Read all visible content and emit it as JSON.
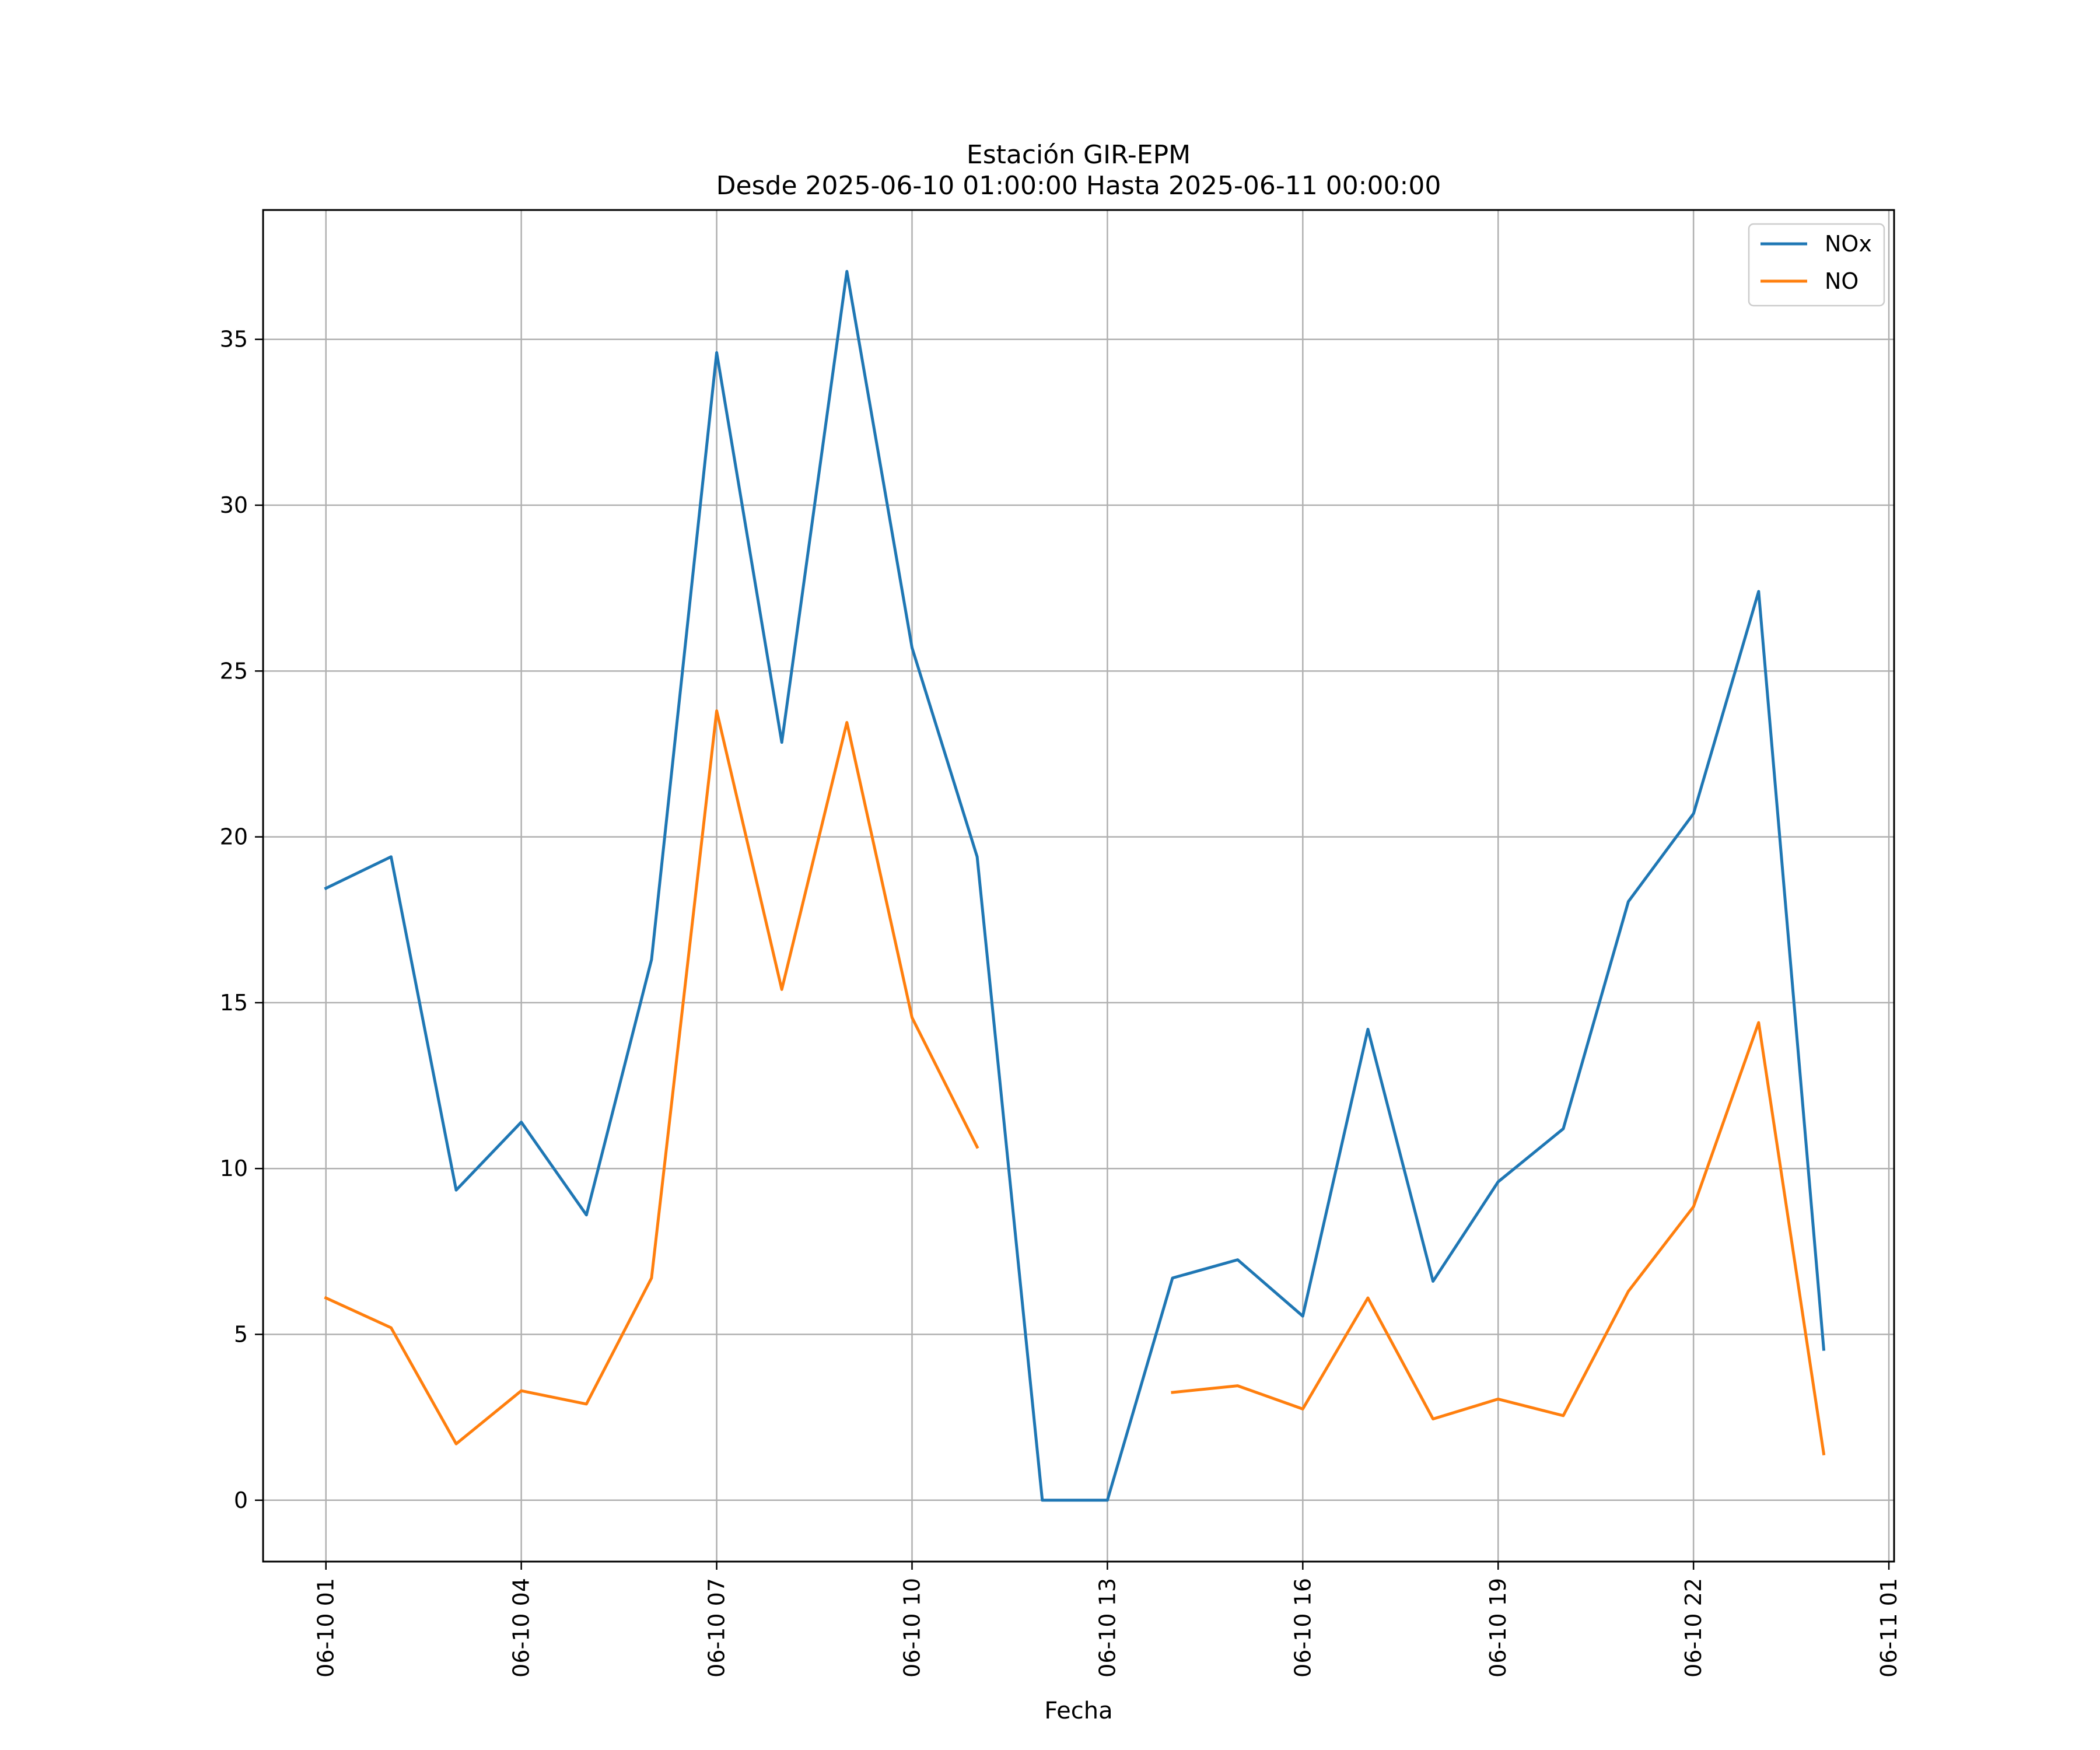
{
  "chart_data": {
    "type": "line",
    "title": "Estación GIR-EPM",
    "subtitle": "Desde 2025-06-10 01:00:00 Hasta 2025-06-11 00:00:00",
    "xlabel": "Fecha",
    "ylabel": "",
    "x": [
      "2025-06-10 01:00",
      "2025-06-10 02:00",
      "2025-06-10 03:00",
      "2025-06-10 04:00",
      "2025-06-10 05:00",
      "2025-06-10 06:00",
      "2025-06-10 07:00",
      "2025-06-10 08:00",
      "2025-06-10 09:00",
      "2025-06-10 10:00",
      "2025-06-10 11:00",
      "2025-06-10 12:00",
      "2025-06-10 13:00",
      "2025-06-10 14:00",
      "2025-06-10 15:00",
      "2025-06-10 16:00",
      "2025-06-10 17:00",
      "2025-06-10 18:00",
      "2025-06-10 19:00",
      "2025-06-10 20:00",
      "2025-06-10 21:00",
      "2025-06-10 22:00",
      "2025-06-10 23:00",
      "2025-06-11 00:00"
    ],
    "series": [
      {
        "name": "NOx",
        "color": "#1f77b4",
        "values": [
          18.45,
          19.4,
          9.35,
          11.4,
          8.6,
          16.3,
          34.6,
          22.85,
          37.05,
          25.7,
          19.4,
          0.0,
          0.0,
          6.7,
          7.25,
          5.55,
          14.2,
          6.6,
          9.6,
          11.2,
          18.05,
          20.7,
          27.4,
          4.55
        ]
      },
      {
        "name": "NO",
        "color": "#ff7f0e",
        "values": [
          6.1,
          5.2,
          1.7,
          3.3,
          2.9,
          6.7,
          23.8,
          15.4,
          23.45,
          14.55,
          10.65,
          null,
          null,
          3.25,
          3.45,
          2.75,
          6.1,
          2.45,
          3.05,
          2.55,
          6.3,
          8.85,
          14.4,
          1.4
        ]
      }
    ],
    "xticks": [
      "06-10 01",
      "06-10 04",
      "06-10 07",
      "06-10 10",
      "06-10 13",
      "06-10 16",
      "06-10 19",
      "06-10 22",
      "06-11 01"
    ],
    "yticks": [
      "0",
      "5",
      "10",
      "15",
      "20",
      "25",
      "30",
      "35"
    ],
    "ylim": [
      -1.85,
      38.9
    ],
    "grid": true,
    "legend_position": "top-right"
  }
}
